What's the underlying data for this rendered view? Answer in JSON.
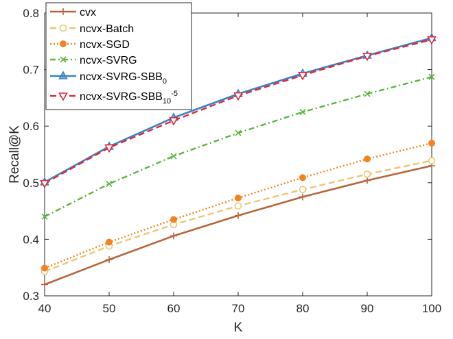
{
  "chart_data": {
    "type": "line",
    "title": "",
    "xlabel": "K",
    "ylabel": "Recall@K",
    "x": [
      40,
      50,
      60,
      70,
      80,
      90,
      100
    ],
    "xlim": [
      40,
      100
    ],
    "ylim": [
      0.3,
      0.8
    ],
    "xticks": [
      "40",
      "50",
      "60",
      "70",
      "80",
      "90",
      "100"
    ],
    "yticks": [
      "0.3",
      "0.4",
      "0.5",
      "0.6",
      "0.7",
      "0.8"
    ],
    "grid": false,
    "legend_position": "top-left",
    "series": [
      {
        "name": "cvx",
        "name_sub": "",
        "name_sup": "",
        "color": "#b5653b",
        "dash": "solid",
        "marker": "plus",
        "values": [
          0.32,
          0.364,
          0.406,
          0.442,
          0.475,
          0.504,
          0.53
        ]
      },
      {
        "name": "ncvx-Batch",
        "name_sub": "",
        "name_sup": "",
        "color": "#e8c770",
        "dash": "dashed",
        "marker": "circle",
        "values": [
          0.343,
          0.388,
          0.426,
          0.459,
          0.488,
          0.515,
          0.539
        ]
      },
      {
        "name": "ncvx-SGD",
        "name_sub": "",
        "name_sup": "",
        "color": "#f58220",
        "dash": "dotted",
        "marker": "filled-circle",
        "values": [
          0.349,
          0.395,
          0.435,
          0.473,
          0.509,
          0.542,
          0.57
        ]
      },
      {
        "name": "ncvx-SVRG",
        "name_sub": "",
        "name_sup": "",
        "color": "#58b63a",
        "dash": "dashdot",
        "marker": "x",
        "values": [
          0.44,
          0.498,
          0.547,
          0.588,
          0.625,
          0.657,
          0.687
        ]
      },
      {
        "name": "ncvx-SVRG-SBB",
        "name_sub": "0",
        "name_sup": "",
        "color": "#3b82c4",
        "dash": "solid",
        "marker": "triangle",
        "values": [
          0.501,
          0.564,
          0.615,
          0.657,
          0.693,
          0.725,
          0.756
        ]
      },
      {
        "name": "ncvx-SVRG-SBB",
        "name_sub": "10",
        "name_sup": "-5",
        "color": "#e02838",
        "dash": "dashed",
        "marker": "triangle-down",
        "values": [
          0.499,
          0.562,
          0.61,
          0.654,
          0.69,
          0.724,
          0.753
        ]
      }
    ]
  }
}
